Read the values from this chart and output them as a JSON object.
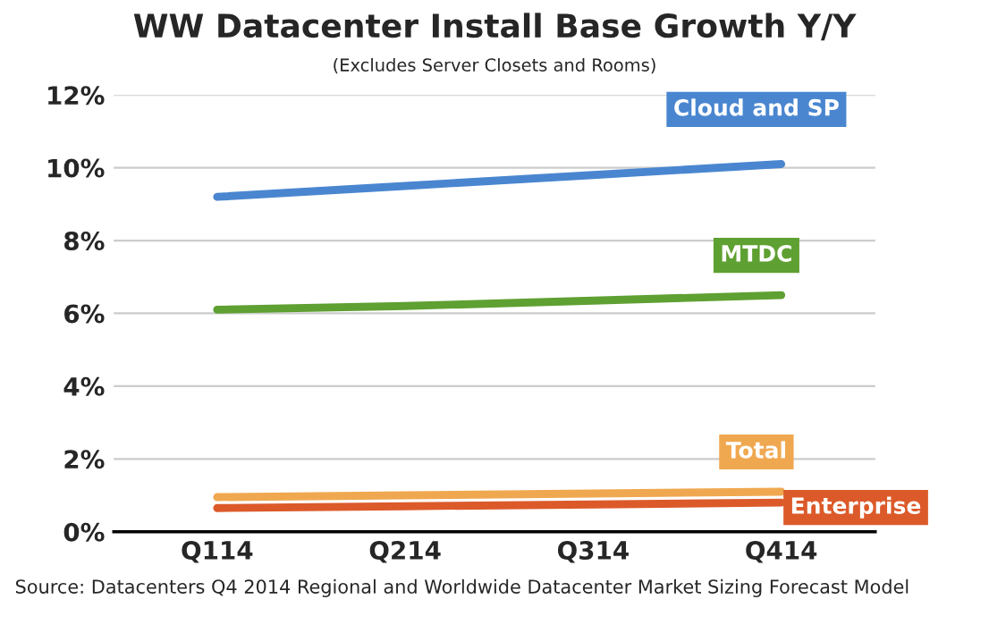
{
  "chart_data": {
    "type": "line",
    "title": "WW Datacenter Install Base Growth Y/Y",
    "subtitle": "(Excludes Server Closets and Rooms)",
    "categories": [
      "Q114",
      "Q214",
      "Q314",
      "Q414"
    ],
    "series": [
      {
        "name": "Cloud and SP",
        "color": "#4a86d0",
        "values": [
          9.2,
          9.5,
          9.8,
          10.1
        ]
      },
      {
        "name": "MTDC",
        "color": "#5fa032",
        "values": [
          6.1,
          6.2,
          6.35,
          6.5
        ]
      },
      {
        "name": "Total",
        "color": "#f0a850",
        "values": [
          0.95,
          1.0,
          1.05,
          1.1
        ]
      },
      {
        "name": "Enterprise",
        "color": "#dc5a2a",
        "values": [
          0.65,
          0.7,
          0.75,
          0.8
        ]
      }
    ],
    "ylim": [
      0,
      12
    ],
    "yticks": [
      {
        "value": 0,
        "label": "0%"
      },
      {
        "value": 2,
        "label": "2%"
      },
      {
        "value": 4,
        "label": "4%"
      },
      {
        "value": 6,
        "label": "6%"
      },
      {
        "value": 8,
        "label": "8%"
      },
      {
        "value": 10,
        "label": "10%"
      },
      {
        "value": 12,
        "label": "12%"
      }
    ],
    "grid": "y",
    "legend": false,
    "marker": "none",
    "line_style": "solid",
    "annotations": [
      "Source: Datacenters Q4 2014 Regional and Worldwide Datacenter Market Sizing Forecast Model"
    ]
  }
}
